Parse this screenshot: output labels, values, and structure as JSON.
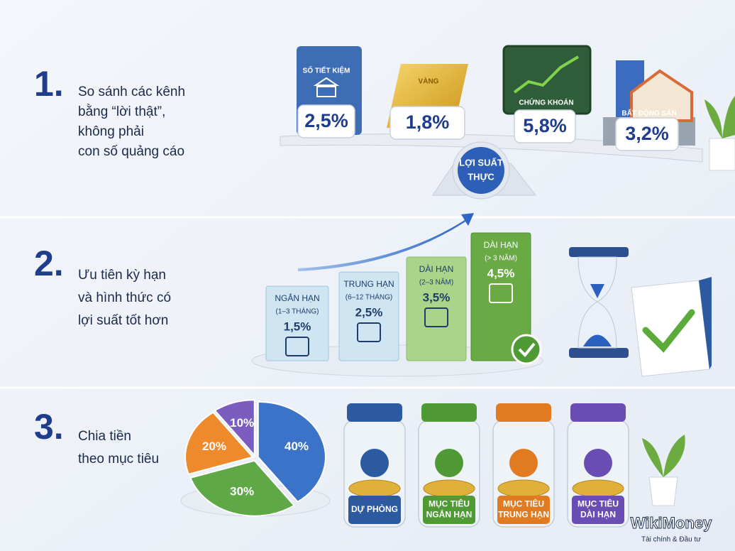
{
  "sections": [
    {
      "number": "1.",
      "text": [
        "So sánh các kênh",
        "bằng “lời thật”,",
        "không phải",
        "con số quảng cáo"
      ],
      "items": [
        {
          "label": "SỐ TIẾT KIỆM",
          "rate": "2,5%"
        },
        {
          "label": "VÀNG",
          "rate": "1,8%"
        },
        {
          "label": "CHỨNG KHOÁN",
          "rate": "5,8%"
        },
        {
          "label": "BẤT ĐỘNG SẢN",
          "rate": "3,2%"
        }
      ],
      "center": [
        "LỢI SUẤT",
        "THỰC"
      ]
    },
    {
      "number": "2.",
      "text": [
        "Ưu tiên kỳ hạn",
        "và hình thức có",
        "lợi suất tốt hơn"
      ],
      "items": [
        {
          "label": "NGẮN HẠN",
          "term": "(1–3 THÁNG)",
          "rate": "1,5%"
        },
        {
          "label": "TRUNG HẠN",
          "term": "(6–12 THÁNG)",
          "rate": "2,5%"
        },
        {
          "label": "DÀI HẠN",
          "term": "(2–3 NĂM)",
          "rate": "3,5%"
        },
        {
          "label": "DÀI HẠN",
          "term": "(> 3 NĂM)",
          "rate": "4,5%"
        }
      ]
    },
    {
      "number": "3.",
      "text": [
        "Chia tiền",
        "theo mục tiêu"
      ],
      "pie": {
        "values": [
          40,
          30,
          20,
          10
        ],
        "value_labels": [
          "40%",
          "30%",
          "20%",
          "10%"
        ],
        "colors": [
          "#3b73c8",
          "#5ea845",
          "#ee8a2c",
          "#7b5cbf"
        ]
      },
      "jars": [
        {
          "label": [
            "DỰ PHÒNG"
          ]
        },
        {
          "label": [
            "MỤC TIÊU",
            "NGẮN HẠN"
          ]
        },
        {
          "label": [
            "MỤC TIÊU",
            "TRUNG HẠN"
          ]
        },
        {
          "label": [
            "MỤC TIÊU",
            "DÀI HẠN"
          ]
        }
      ]
    }
  ],
  "brand": {
    "name": "WikiMoney",
    "tagline": "Tài chính & Đầu tư"
  }
}
